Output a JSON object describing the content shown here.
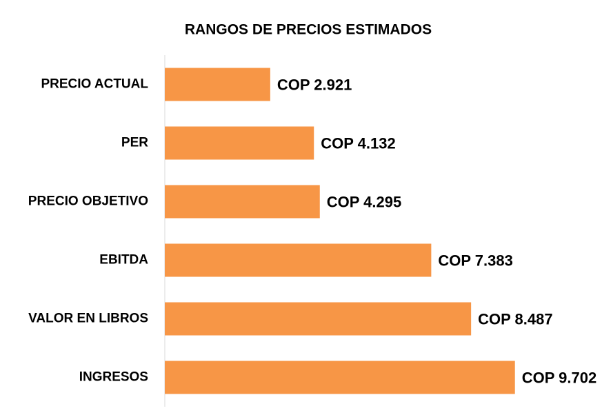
{
  "chart_data": {
    "type": "hbar",
    "title": "RANGOS DE PRECIOS ESTIMADOS",
    "categories": [
      "PRECIO ACTUAL",
      "PER",
      "PRECIO OBJETIVO",
      "EBITDA",
      "VALOR EN LIBROS",
      "INGRESOS"
    ],
    "values": [
      2921,
      4132,
      4295,
      7383,
      8487,
      9702
    ],
    "value_labels": [
      "COP 2.921",
      "COP 4.132",
      "COP 4.295",
      "COP 7.383",
      "COP 8.487",
      "COP 9.702"
    ],
    "color": "#f79646",
    "xlim": [
      0,
      12000
    ]
  }
}
